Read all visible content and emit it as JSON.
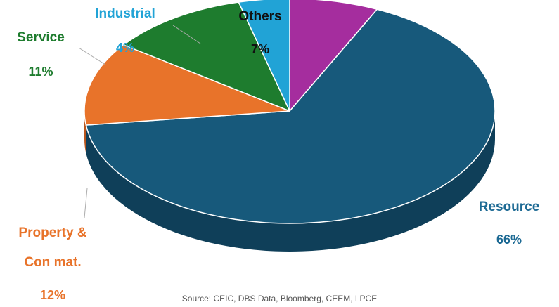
{
  "chart_data": {
    "type": "pie",
    "categories": [
      "Resource",
      "Property & Con mat.",
      "Service",
      "Industrial",
      "Others"
    ],
    "values": [
      66,
      12,
      11,
      4,
      7
    ],
    "labels": [
      {
        "name": [
          "Resource"
        ],
        "pct": "66%"
      },
      {
        "name": [
          "Property &",
          "Con mat."
        ],
        "pct": "12%"
      },
      {
        "name": [
          "Service"
        ],
        "pct": "11%"
      },
      {
        "name": [
          "Industrial"
        ],
        "pct": "4%"
      },
      {
        "name": [
          "Others"
        ],
        "pct": "7%"
      }
    ],
    "colors": [
      "#17597b",
      "#e8732a",
      "#1e7c2e",
      "#21a3d6",
      "#a52d9e"
    ],
    "side_colors": [
      "#0f3f59",
      "#b9561d",
      "#14591f",
      "#1781ab",
      "#7b1f76"
    ],
    "label_colors": [
      "#1d6a94",
      "#e8732a",
      "#1e7c2e",
      "#21a3d6",
      "#111111"
    ],
    "style": "3d",
    "legend": "none",
    "title": ""
  },
  "source_note": "Source: CEIC, DBS Data, Bloomberg, CEEM, LPCE"
}
